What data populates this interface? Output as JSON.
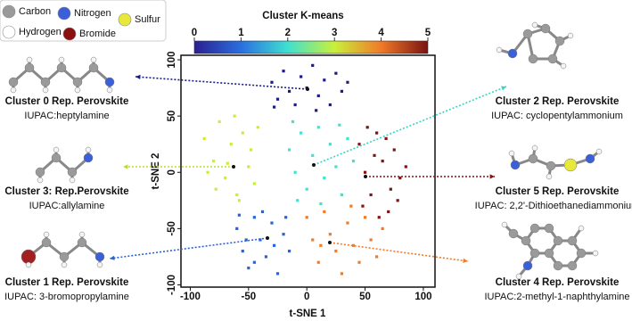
{
  "chart_data": {
    "type": "scatter",
    "xlabel": "t-SNE 1",
    "ylabel": "t-SNE 2",
    "xlim": [
      -108,
      110
    ],
    "ylim": [
      -102,
      104
    ],
    "xticks": [
      -100,
      -50,
      0,
      50,
      100
    ],
    "yticks": [
      -100,
      -50,
      0,
      50,
      100
    ],
    "colorbar": {
      "label": "Cluster K-means",
      "lim": [
        0,
        5
      ],
      "ticks": [
        0,
        1,
        2,
        3,
        4,
        5
      ],
      "colors": [
        "#2b1f8f",
        "#2a6fe0",
        "#3fe0d0",
        "#c9f03a",
        "#f07a28",
        "#7a1212"
      ]
    },
    "series": [
      {
        "color": "#1c1c86",
        "x": [
          -30,
          -25,
          -20,
          -15,
          -10,
          -5,
          0,
          5,
          10,
          15,
          20,
          25,
          30,
          -28,
          8,
          35
        ],
        "values": [
          80,
          65,
          90,
          72,
          60,
          85,
          75,
          95,
          68,
          82,
          60,
          88,
          72,
          58,
          55,
          80
        ]
      },
      {
        "color": "#2a62d8",
        "x": [
          -60,
          -55,
          -50,
          -45,
          -40,
          -35,
          -30,
          -25,
          -20,
          -15,
          -52,
          -38,
          -28,
          -45,
          -18,
          -58
        ],
        "values": [
          -50,
          -70,
          -85,
          -40,
          -60,
          -75,
          -45,
          -90,
          -55,
          -70,
          -60,
          -35,
          -65,
          -80,
          -40,
          -38
        ]
      },
      {
        "color": "#3fe3d2",
        "x": [
          -15,
          -10,
          -5,
          0,
          5,
          10,
          15,
          20,
          25,
          30,
          35,
          40,
          -8,
          12,
          28,
          -12
        ],
        "values": [
          20,
          0,
          35,
          -15,
          15,
          40,
          -5,
          25,
          5,
          -20,
          30,
          10,
          -25,
          -28,
          42,
          45
        ]
      },
      {
        "color": "#c6ef3c",
        "x": [
          -88,
          -80,
          -75,
          -70,
          -65,
          -60,
          -55,
          -50,
          -45,
          -78,
          -62,
          -48,
          -85,
          -68,
          -58,
          -42
        ],
        "values": [
          30,
          10,
          45,
          -5,
          25,
          -20,
          35,
          5,
          -10,
          -15,
          50,
          20,
          0,
          8,
          -25,
          40
        ]
      },
      {
        "color": "#f07a2a",
        "x": [
          0,
          5,
          10,
          15,
          20,
          25,
          30,
          35,
          40,
          45,
          50,
          55,
          60,
          65,
          12,
          38
        ],
        "values": [
          -40,
          -60,
          -80,
          -35,
          -55,
          -70,
          -90,
          -45,
          -65,
          -80,
          -40,
          -60,
          -75,
          -50,
          -65,
          -30
        ]
      },
      {
        "color": "#7e1414",
        "x": [
          45,
          50,
          55,
          60,
          65,
          70,
          75,
          80,
          85,
          48,
          58,
          68,
          72,
          62,
          52,
          78
        ],
        "values": [
          25,
          0,
          -20,
          35,
          10,
          -35,
          20,
          -5,
          5,
          -30,
          15,
          30,
          -15,
          -40,
          40,
          -25
        ]
      }
    ],
    "atom_legend": [
      {
        "label": "Carbon",
        "color": "#9a9a9a"
      },
      {
        "label": "Nitrogen",
        "color": "#3a5fd8"
      },
      {
        "label": "Sulfur",
        "color": "#e8e83a"
      },
      {
        "label": "Hydrogen",
        "color": "#ffffff"
      },
      {
        "label": "Bromide",
        "color": "#8b1010"
      }
    ],
    "annotations": [
      {
        "title": "Cluster 0 Rep. Perovskite",
        "subtitle": "IUPAC:heptylamine"
      },
      {
        "title": "Cluster 3: Rep.Perovskite",
        "subtitle": "IUPAC:allylamine"
      },
      {
        "title": "Cluster 1 Rep. Perovskite",
        "subtitle": "IUPAC: 3-bromopropylamine"
      },
      {
        "title": "Cluster 2 Rep. Perovskite",
        "subtitle": "IUPAC: cyclopentylammonium"
      },
      {
        "title": "Cluster 5 Rep. Perovskite",
        "subtitle": "IUPAC: 2,2'-Dithioethanediammonium"
      },
      {
        "title": "Cluster 4 Rep. Perovskite",
        "subtitle": "IUPAC:2-methyl-1-naphthylamine"
      }
    ]
  }
}
